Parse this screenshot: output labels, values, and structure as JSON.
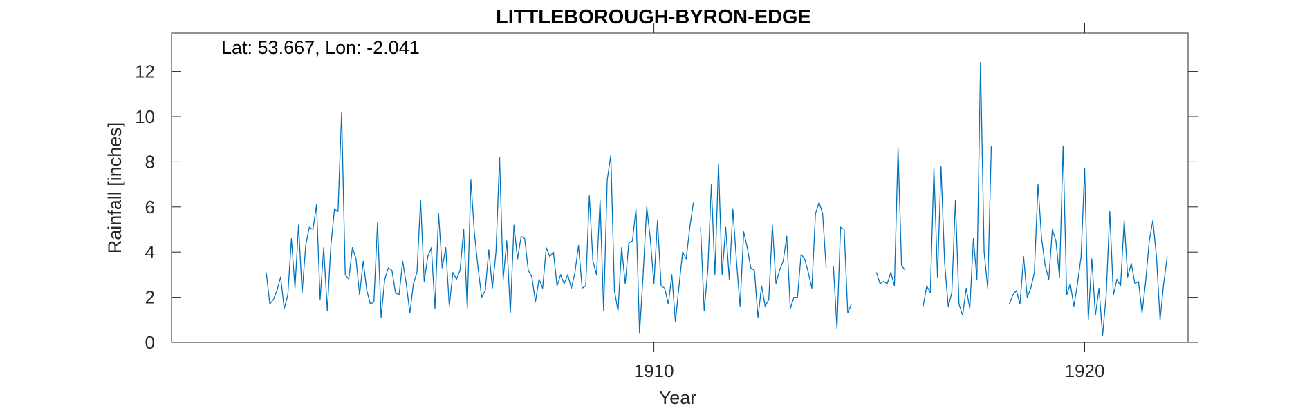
{
  "chart_data": {
    "type": "line",
    "title": "LITTLEBOROUGH-BYRON-EDGE",
    "annotation": "Lat: 53.667, Lon: -2.041",
    "xlabel": "Year",
    "ylabel": "Rainfall [inches]",
    "xlim": [
      1898.8,
      1922.4
    ],
    "ylim": [
      0,
      13.7
    ],
    "x_ticks": [
      1910,
      1920
    ],
    "x_tick_labels": [
      "1910",
      "1920"
    ],
    "y_ticks": [
      0,
      2,
      4,
      6,
      8,
      10,
      12
    ],
    "y_tick_labels": [
      "0",
      "2",
      "4",
      "6",
      "8",
      "10",
      "12"
    ],
    "grid": false,
    "line_color": "#0072BD",
    "series": [
      {
        "start_year": 1901,
        "step": 0.08333,
        "values": [
          3.1,
          1.7,
          1.9,
          2.3,
          2.9,
          1.5,
          2.1,
          4.6,
          2.4,
          5.2,
          2.2,
          4.3,
          5.1,
          5.0,
          6.1,
          1.9,
          4.2,
          1.4,
          4.3,
          5.9,
          5.8,
          10.2,
          3.0,
          2.8,
          4.2,
          3.7,
          2.1,
          3.6,
          2.3,
          1.7,
          1.8,
          5.3,
          1.1,
          2.8,
          3.3,
          3.2,
          2.2,
          2.1,
          3.6,
          2.6,
          1.3,
          2.6,
          3.1,
          6.3,
          2.7,
          3.8,
          4.2,
          1.5,
          5.7,
          3.3,
          4.2,
          1.6,
          3.1,
          2.8,
          3.2,
          5.0,
          1.5,
          7.2,
          4.8,
          3.3,
          2.0,
          2.3,
          4.1,
          2.4,
          4.0,
          8.2,
          2.8,
          4.5,
          1.3,
          5.2,
          3.7,
          4.7,
          4.6,
          3.2,
          2.9,
          1.8,
          2.8,
          2.4,
          4.2,
          3.8,
          4.0,
          2.5,
          3.0,
          2.6,
          3.0,
          2.4,
          3.1,
          4.3,
          2.4,
          2.5,
          6.5,
          3.6,
          3.0,
          6.3,
          1.4,
          7.2,
          8.3,
          2.3,
          1.4,
          4.2,
          2.6,
          4.4,
          4.5,
          5.9,
          0.4,
          3.0,
          6.0,
          4.6,
          2.6,
          5.4,
          2.5,
          2.4,
          1.7,
          3.0,
          0.9,
          2.5,
          4.0,
          3.7,
          5.1,
          6.2,
          null,
          5.1,
          1.4,
          3.2,
          7.0,
          3.0,
          7.9,
          3.0,
          5.1,
          2.8,
          5.9,
          3.6,
          1.6,
          4.9,
          4.2,
          3.3,
          3.2,
          1.1,
          2.5,
          1.6,
          1.9,
          5.2,
          2.6,
          3.2,
          3.6,
          4.7,
          1.5,
          2.0,
          2.0,
          3.9,
          3.7,
          3.1,
          2.4,
          5.7,
          6.2,
          5.7,
          3.3,
          null,
          3.4,
          0.6,
          5.1,
          5.0,
          1.3,
          1.7,
          null,
          null,
          null,
          null,
          null,
          null,
          3.1,
          2.6,
          2.7,
          2.6,
          3.1,
          2.5,
          8.6,
          3.4,
          3.2,
          null,
          null,
          null,
          null,
          1.6,
          2.5,
          2.2,
          7.7,
          2.9,
          7.8,
          3.5,
          1.6,
          2.2,
          6.3,
          1.7,
          1.2,
          2.4,
          1.5,
          4.6,
          2.8,
          12.4,
          4.0,
          2.4,
          8.7,
          null,
          null,
          null,
          null,
          1.7,
          2.1,
          2.3,
          1.7,
          3.8,
          2.0,
          2.4,
          3.1,
          7.0,
          4.6,
          3.4,
          2.8,
          5.0,
          4.5,
          2.9,
          8.7,
          2.1,
          2.6,
          1.6,
          2.6,
          3.8,
          7.7,
          1.0,
          3.7,
          1.2,
          2.4,
          0.3,
          2.1,
          5.8,
          2.1,
          2.8,
          2.5,
          5.4,
          2.9,
          3.5,
          2.6,
          2.7,
          1.3,
          2.7,
          4.5,
          5.4,
          3.8,
          1.0,
          2.6,
          3.8
        ]
      }
    ]
  }
}
